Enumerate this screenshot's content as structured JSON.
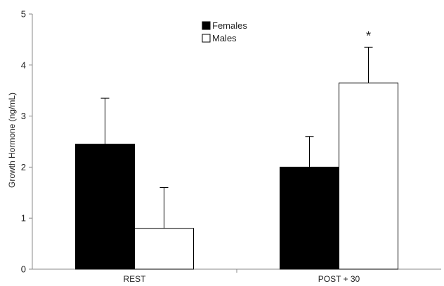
{
  "chart_data": {
    "type": "bar",
    "title": "",
    "xlabel": "",
    "ylabel": "Growth Hormone (ng/mL)",
    "ylim": [
      0,
      5
    ],
    "yticks": [
      "0",
      "1",
      "2",
      "3",
      "4",
      "5"
    ],
    "categories": [
      "REST",
      "POST + 30"
    ],
    "series": [
      {
        "name": "Females",
        "values": [
          2.45,
          2.0
        ],
        "errors": [
          0.9,
          0.6
        ],
        "color": "#000000"
      },
      {
        "name": "Males",
        "values": [
          0.8,
          3.65
        ],
        "errors": [
          0.8,
          0.7
        ],
        "color": "#ffffff"
      }
    ],
    "legend_position": "top-center",
    "grid": false,
    "annotations": [
      {
        "text": "*",
        "category": "POST + 30",
        "series": "Males"
      }
    ]
  }
}
